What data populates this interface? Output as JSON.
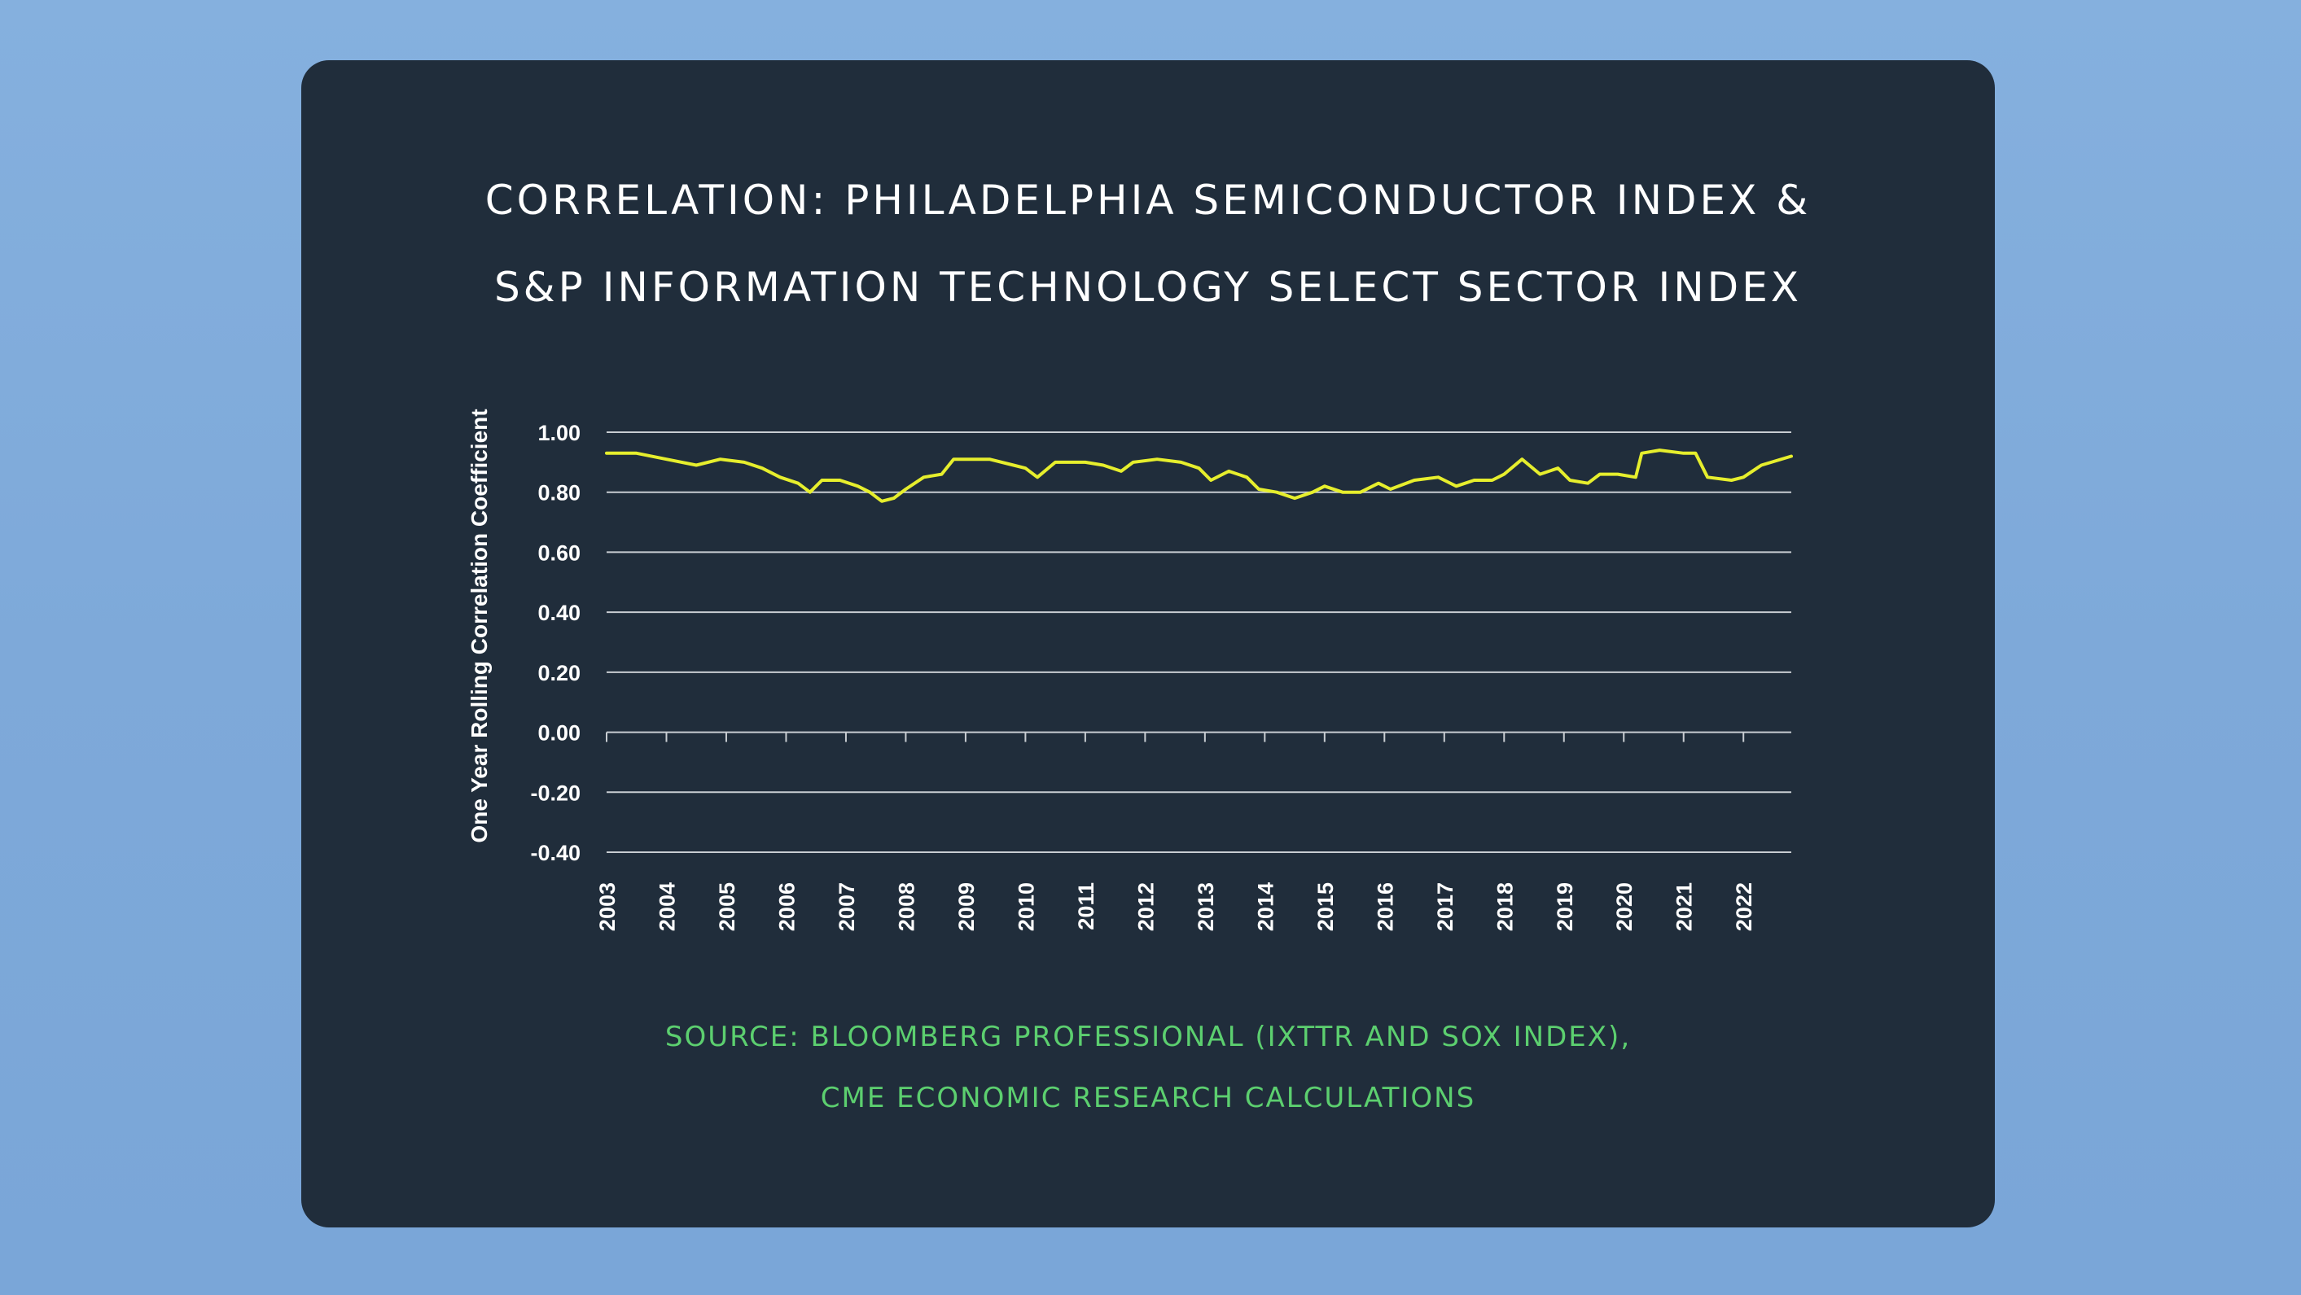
{
  "card": {
    "title_line1": "CORRELATION: PHILADELPHIA SEMICONDUCTOR INDEX &",
    "title_line2": "S&P INFORMATION TECHNOLOGY SELECT SECTOR INDEX",
    "source_line1": "SOURCE: BLOOMBERG PROFESSIONAL (IXTTR AND SOX INDEX),",
    "source_line2": "CME ECONOMIC RESEARCH CALCULATIONS"
  },
  "colors": {
    "background": "#7ea9d9",
    "card": "#202d3b",
    "title": "#ffffff",
    "source": "#5ccf6f",
    "line": "#e6ee2d",
    "grid": "#c8cdd2"
  },
  "chart_data": {
    "type": "line",
    "title": "CORRELATION: PHILADELPHIA SEMICONDUCTOR INDEX & S&P INFORMATION TECHNOLOGY SELECT SECTOR INDEX",
    "xlabel": "",
    "ylabel": "One Year Rolling Correlation Coefficient",
    "ylim": [
      -0.4,
      1.0
    ],
    "xlim": [
      2003,
      2022.8
    ],
    "yticks": [
      1.0,
      0.8,
      0.6,
      0.4,
      0.2,
      0.0,
      -0.2,
      -0.4
    ],
    "ytick_labels": [
      "1.00",
      "0.80",
      "0.60",
      "0.40",
      "0.20",
      "0.00",
      "-0.20",
      "-0.40"
    ],
    "xticks": [
      2003,
      2004,
      2005,
      2006,
      2007,
      2008,
      2009,
      2010,
      2011,
      2012,
      2013,
      2014,
      2015,
      2016,
      2017,
      2018,
      2019,
      2020,
      2021,
      2022
    ],
    "xtick_labels": [
      "2003",
      "2004",
      "2005",
      "2006",
      "2007",
      "2008",
      "2009",
      "2010",
      "2011",
      "2012",
      "2013",
      "2014",
      "2015",
      "2016",
      "2017",
      "2018",
      "2019",
      "2020",
      "2021",
      "2022"
    ],
    "grid": true,
    "legend": "none",
    "series": [
      {
        "color": "#e6ee2d",
        "x": [
          2003.0,
          2003.5,
          2004.0,
          2004.5,
          2004.9,
          2005.3,
          2005.6,
          2005.9,
          2006.2,
          2006.4,
          2006.6,
          2006.9,
          2007.2,
          2007.4,
          2007.6,
          2007.8,
          2008.0,
          2008.3,
          2008.6,
          2008.8,
          2009.0,
          2009.4,
          2009.8,
          2010.0,
          2010.2,
          2010.5,
          2011.0,
          2011.3,
          2011.6,
          2011.8,
          2012.2,
          2012.6,
          2012.9,
          2013.1,
          2013.4,
          2013.7,
          2013.9,
          2014.2,
          2014.5,
          2014.8,
          2015.0,
          2015.3,
          2015.6,
          2015.9,
          2016.1,
          2016.5,
          2016.9,
          2017.2,
          2017.5,
          2017.8,
          2018.0,
          2018.3,
          2018.6,
          2018.9,
          2019.1,
          2019.4,
          2019.6,
          2019.9,
          2020.2,
          2020.3,
          2020.6,
          2021.0,
          2021.2,
          2021.4,
          2021.8,
          2022.0,
          2022.3,
          2022.8
        ],
        "y": [
          0.93,
          0.93,
          0.91,
          0.89,
          0.91,
          0.9,
          0.88,
          0.85,
          0.83,
          0.8,
          0.84,
          0.84,
          0.82,
          0.8,
          0.77,
          0.78,
          0.81,
          0.85,
          0.86,
          0.91,
          0.91,
          0.91,
          0.89,
          0.88,
          0.85,
          0.9,
          0.9,
          0.89,
          0.87,
          0.9,
          0.91,
          0.9,
          0.88,
          0.84,
          0.87,
          0.85,
          0.81,
          0.8,
          0.78,
          0.8,
          0.82,
          0.8,
          0.8,
          0.83,
          0.81,
          0.84,
          0.85,
          0.82,
          0.84,
          0.84,
          0.86,
          0.91,
          0.86,
          0.88,
          0.84,
          0.83,
          0.86,
          0.86,
          0.85,
          0.93,
          0.94,
          0.93,
          0.93,
          0.85,
          0.84,
          0.85,
          0.89,
          0.92
        ]
      }
    ]
  }
}
